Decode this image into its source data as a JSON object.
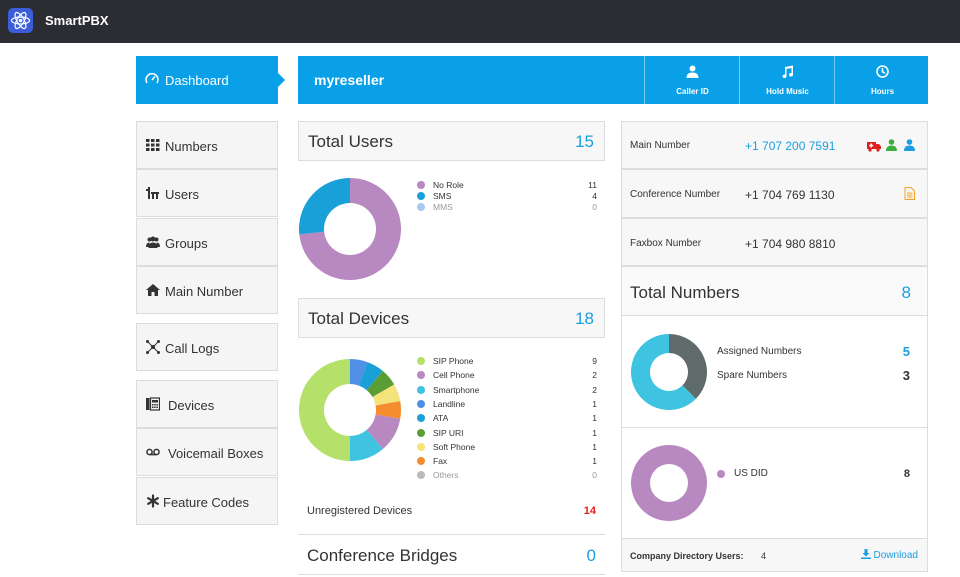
{
  "app": {
    "title": "SmartPBX"
  },
  "nav": {
    "active": "Dashboard",
    "items": [
      "Numbers",
      "Users",
      "Groups",
      "Main Number",
      "Call Logs",
      "Devices",
      "Voicemail Boxes",
      "Feature Codes"
    ]
  },
  "banner": {
    "title": "myreseller",
    "buttons": [
      "Caller ID",
      "Hold Music",
      "Hours"
    ]
  },
  "total_users": {
    "title": "Total Users",
    "count": "15",
    "legend": [
      {
        "name": "No Role",
        "value": "11",
        "color": "#b888c0"
      },
      {
        "name": "SMS",
        "value": "4",
        "color": "#1aa0d8"
      },
      {
        "name": "MMS",
        "value": "0",
        "color": "#a8c8f0"
      }
    ]
  },
  "total_devices": {
    "title": "Total Devices",
    "count": "18",
    "legend": [
      {
        "name": "SIP Phone",
        "value": "9",
        "color": "#b5e06a"
      },
      {
        "name": "Cell Phone",
        "value": "2",
        "color": "#b888c0"
      },
      {
        "name": "Smartphone",
        "value": "2",
        "color": "#3ec4e0"
      },
      {
        "name": "Landline",
        "value": "1",
        "color": "#4f8fe6"
      },
      {
        "name": "ATA",
        "value": "1",
        "color": "#1aa0d8"
      },
      {
        "name": "SIP URI",
        "value": "1",
        "color": "#5b9d35"
      },
      {
        "name": "Soft Phone",
        "value": "1",
        "color": "#f4e27a"
      },
      {
        "name": "Fax",
        "value": "1",
        "color": "#f58c2f"
      },
      {
        "name": "Others",
        "value": "0",
        "color": "#bbbbbb"
      }
    ],
    "unregistered_label": "Unregistered Devices",
    "unregistered_count": "14"
  },
  "conference_bridges": {
    "title": "Conference Bridges",
    "count": "0"
  },
  "numbers_panel": {
    "main_label": "Main Number",
    "main_value": "+1 707 200 7591",
    "conference_label": "Conference Number",
    "conference_value": "+1 704 769 1130",
    "faxbox_label": "Faxbox Number",
    "faxbox_value": "+1 704 980 8810"
  },
  "total_numbers": {
    "title": "Total Numbers",
    "count": "8",
    "assigned_label": "Assigned Numbers",
    "assigned_count": "5",
    "spare_label": "Spare Numbers",
    "spare_count": "3",
    "did_label": "US DID",
    "did_count": "8"
  },
  "directory": {
    "label": "Company Directory Users:",
    "count": "4",
    "download": "Download"
  },
  "colors": {
    "accent": "#0aa0e8",
    "link": "#1a9ee0",
    "alert": "#e0201c"
  }
}
